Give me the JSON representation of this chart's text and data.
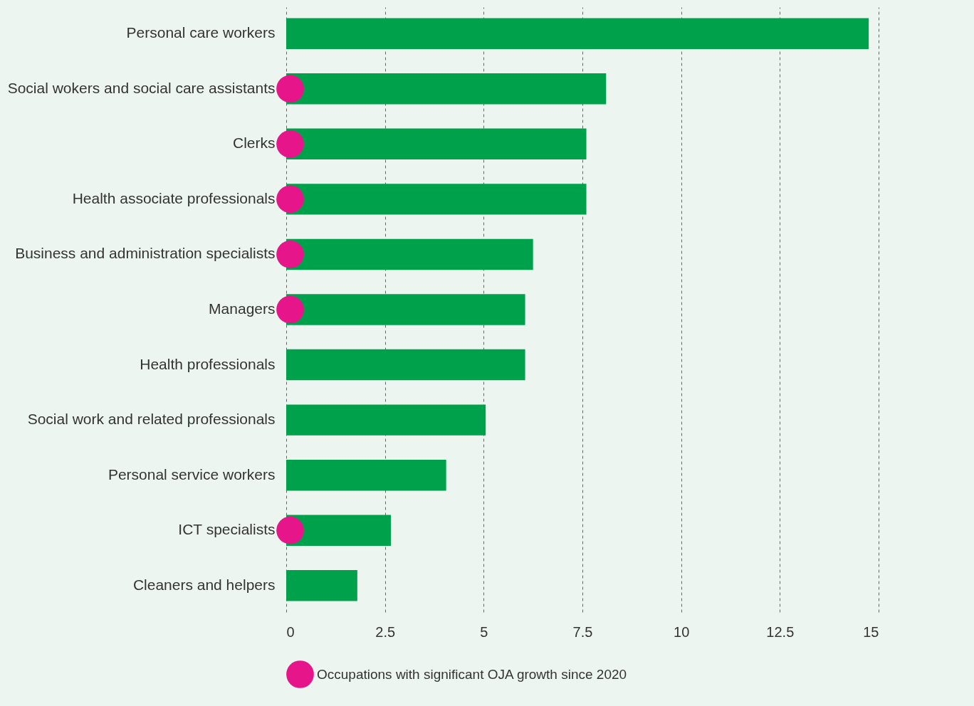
{
  "chart_data": {
    "type": "bar",
    "orientation": "horizontal",
    "categories": [
      "Personal care workers",
      "Social wokers and social care assistants",
      "Clerks",
      "Health associate professionals",
      "Business and administration specialists",
      "Managers",
      "Health professionals",
      "Social work and related professionals",
      "Personal service workers",
      "ICT specialists",
      "Cleaners and helpers"
    ],
    "series": [
      {
        "color": "#00a14b",
        "values": [
          14.75,
          8.1,
          7.6,
          7.6,
          6.25,
          6.05,
          6.05,
          5.05,
          4.05,
          2.65,
          1.8
        ]
      },
      {
        "type": "scatter",
        "name": "Occupations with significant OJA growth since 2020",
        "color": "#e6168a",
        "values": [
          null,
          0.1,
          0.1,
          0.1,
          0.1,
          0.1,
          null,
          null,
          null,
          0.1,
          null
        ]
      }
    ],
    "xlim": [
      0,
      15
    ],
    "xticks": [
      0,
      2.5,
      5,
      7.5,
      10,
      12.5,
      15
    ],
    "grid": "x",
    "legend": "bottom",
    "marker": "circle"
  }
}
